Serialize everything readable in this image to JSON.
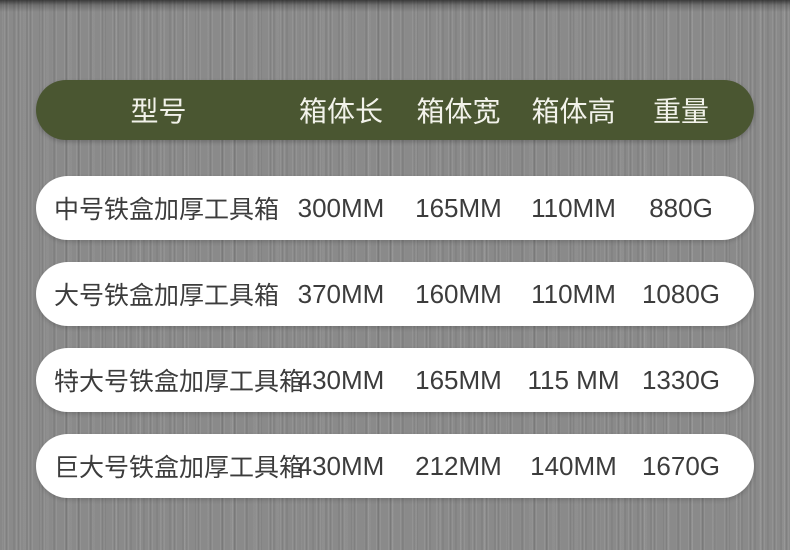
{
  "table": {
    "header": {
      "columns": [
        "型号",
        "箱体长",
        "箱体宽",
        "箱体高",
        "重量"
      ]
    },
    "rows": [
      {
        "model": "中号铁盒加厚工具箱",
        "length": "300MM",
        "width": "165MM",
        "height": "110MM",
        "weight": "880G"
      },
      {
        "model": "大号铁盒加厚工具箱",
        "length": "370MM",
        "width": "160MM",
        "height": "110MM",
        "weight": "1080G"
      },
      {
        "model": "特大号铁盒加厚工具箱",
        "length": "430MM",
        "width": "165MM",
        "height": "115 MM",
        "weight": "1330G"
      },
      {
        "model": "巨大号铁盒加厚工具箱",
        "length": "430MM",
        "width": "212MM",
        "height": "140MM",
        "weight": "1670G"
      }
    ],
    "colors": {
      "header_bg": "#4a5631",
      "header_text": "#f2f2ea",
      "row_bg": "#ffffff",
      "row_text": "#3c3c3c",
      "page_bg": "#8a8a8a"
    }
  }
}
